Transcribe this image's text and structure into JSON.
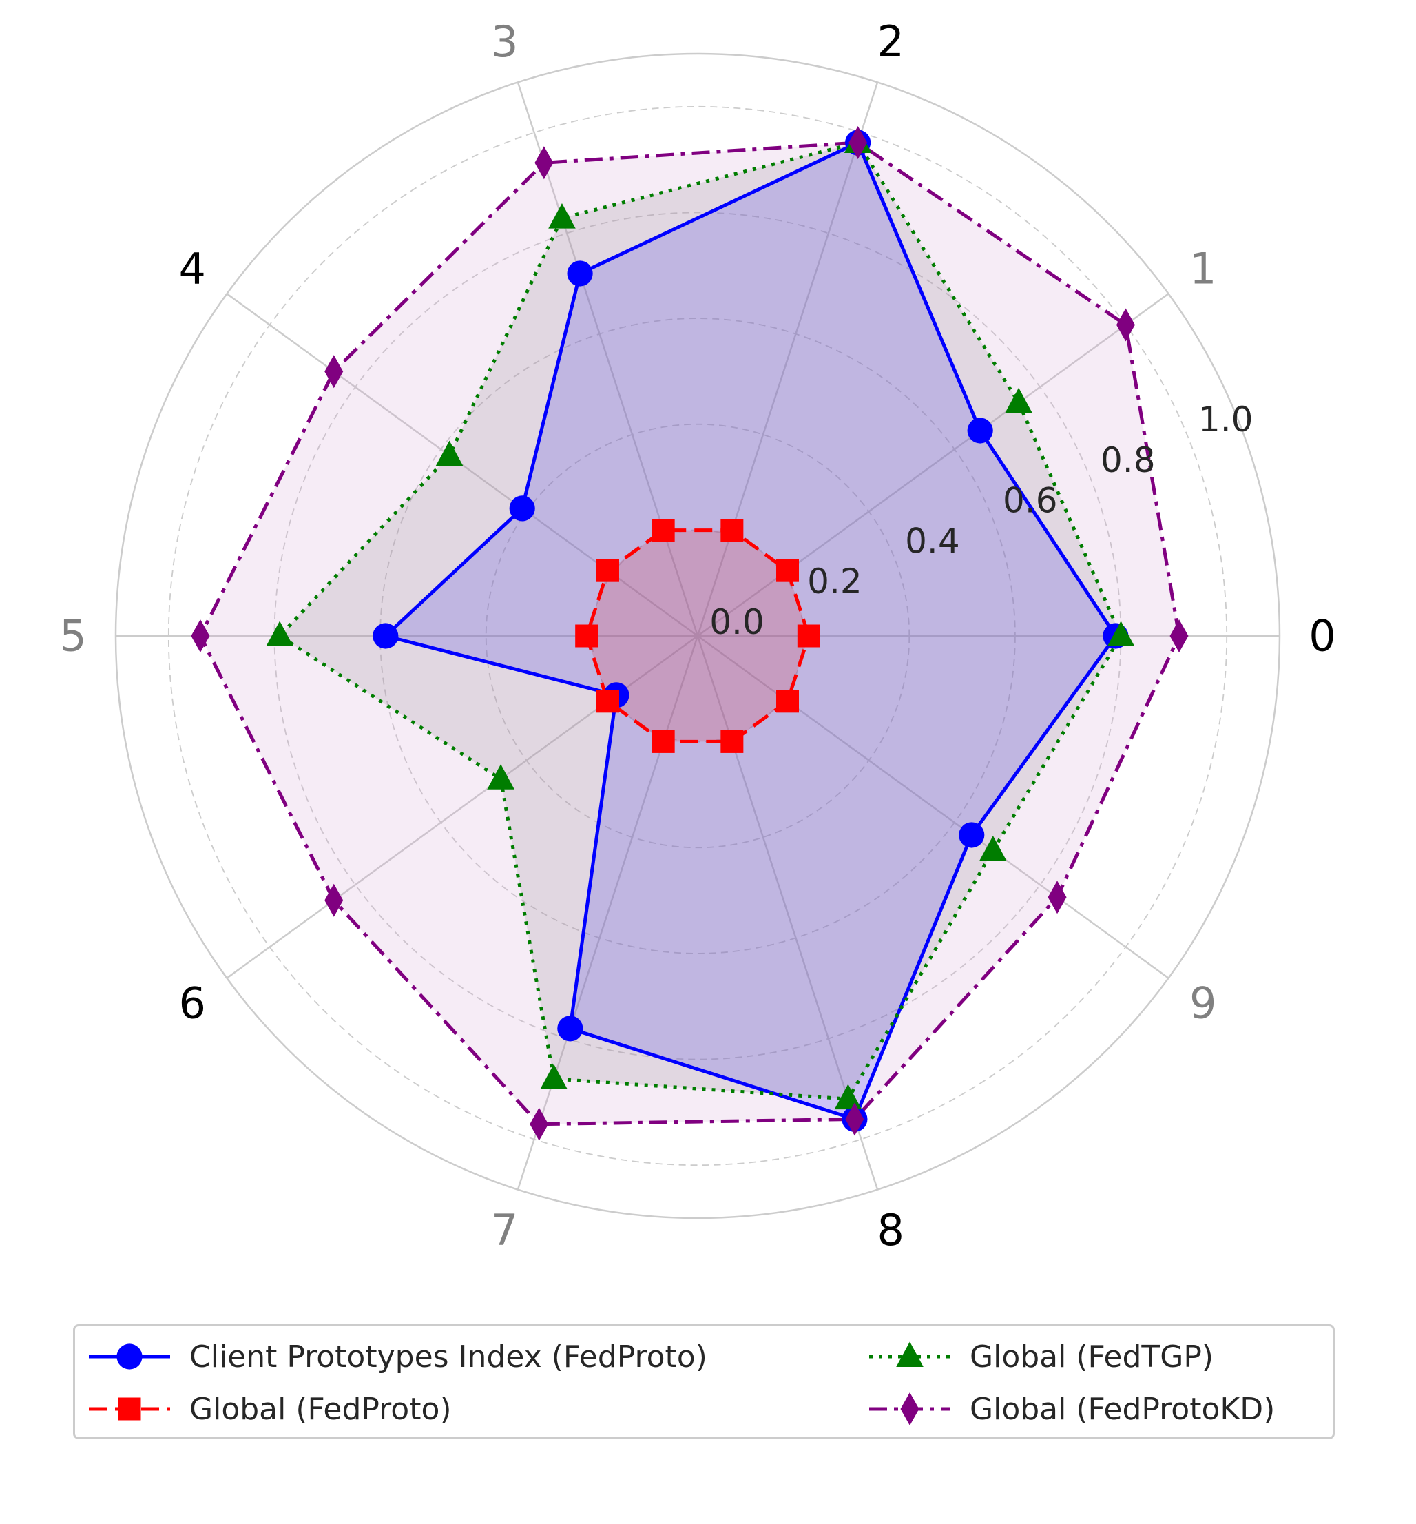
{
  "chart_data": {
    "type": "radar",
    "categories": [
      "0",
      "1",
      "2",
      "3",
      "4",
      "5",
      "6",
      "7",
      "8",
      "9"
    ],
    "category_label_colors": [
      "#000000",
      "#808080",
      "#000000",
      "#808080",
      "#000000",
      "#808080",
      "#000000",
      "#808080",
      "#000000",
      "#808080"
    ],
    "radial_ticks": [
      "0.0",
      "0.2",
      "0.4",
      "0.6",
      "0.8",
      "1.0"
    ],
    "radial_tick_values": [
      0.0,
      0.2,
      0.4,
      0.6,
      0.8,
      1.0
    ],
    "rlim": [
      0,
      1.1
    ],
    "grid": true,
    "legend_position": "bottom",
    "series": [
      {
        "name": "Client Prototypes Index (FedProto)",
        "color": "#0000ff",
        "marker": "circle",
        "line_style": "solid",
        "fill_color": "#0000ff",
        "values": [
          0.79,
          0.66,
          0.98,
          0.72,
          0.41,
          0.59,
          0.19,
          0.78,
          0.96,
          0.64
        ]
      },
      {
        "name": "Global (FedProto)",
        "color": "#ff0000",
        "marker": "square",
        "line_style": "dashed",
        "fill_color": "#ff0000",
        "values": [
          0.21,
          0.21,
          0.21,
          0.21,
          0.21,
          0.21,
          0.21,
          0.21,
          0.21,
          0.21
        ]
      },
      {
        "name": "Global (FedTGP)",
        "color": "#007d00",
        "marker": "triangle",
        "line_style": "dotted",
        "fill_color": "#7f7f7f",
        "values": [
          0.8,
          0.75,
          0.98,
          0.83,
          0.58,
          0.79,
          0.46,
          0.88,
          0.92,
          0.69
        ]
      },
      {
        "name": "Global (FedProtoKD)",
        "color": "#800080",
        "marker": "diamond",
        "line_style": "dashdot",
        "fill_color": "#d29ed2",
        "values": [
          0.91,
          1.0,
          0.98,
          0.94,
          0.85,
          0.94,
          0.85,
          0.97,
          0.96,
          0.84
        ]
      }
    ]
  }
}
